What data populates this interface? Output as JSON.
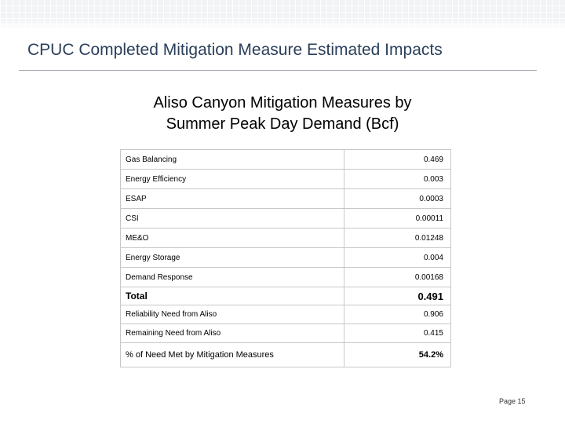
{
  "slide": {
    "title": "CPUC Completed Mitigation Measure Estimated Impacts",
    "table_heading_line1": "Aliso Canyon Mitigation Measures by",
    "table_heading_line2": "Summer Peak Day Demand (Bcf)",
    "page_number": "Page 15"
  },
  "table": {
    "rows": [
      {
        "label": "Gas Balancing",
        "value": "0.469"
      },
      {
        "label": "Energy Efficiency",
        "value": "0.003"
      },
      {
        "label": "ESAP",
        "value": "0.0003"
      },
      {
        "label": "CSI",
        "value": "0.00011"
      },
      {
        "label": "ME&O",
        "value": "0.01248"
      },
      {
        "label": "Energy Storage",
        "value": "0.004"
      },
      {
        "label": "Demand Response",
        "value": "0.00168"
      }
    ],
    "total": {
      "label": "Total",
      "value": "0.491"
    },
    "reliability_need": {
      "label": "Reliability Need from Aliso",
      "value": "0.906"
    },
    "remaining_need": {
      "label": "Remaining Need from Aliso",
      "value": "0.415"
    },
    "percent_met": {
      "label": "% of Need Met by Mitigation Measures",
      "value": "54.2%"
    }
  }
}
